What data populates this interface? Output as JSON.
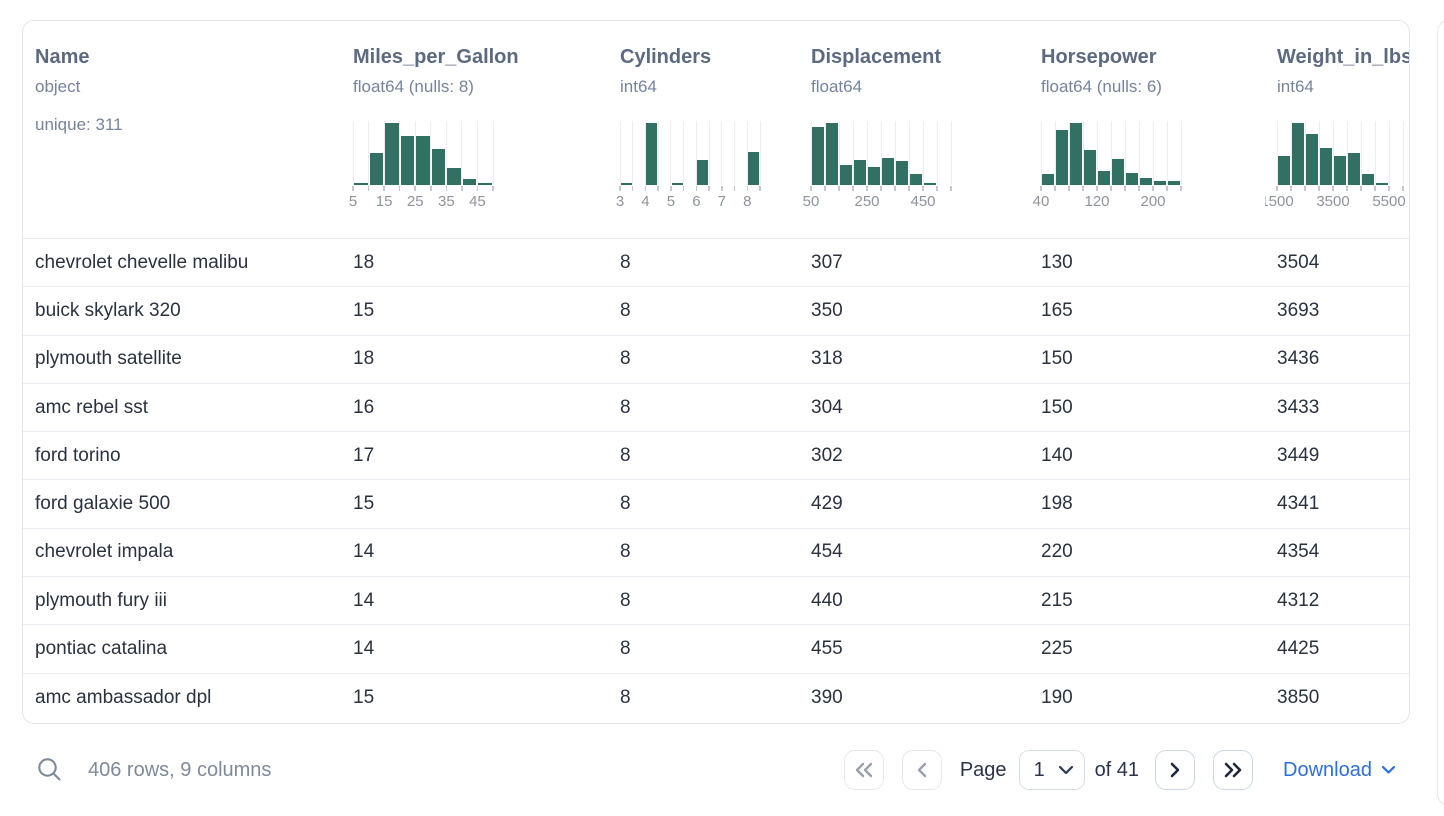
{
  "table": {
    "columns": [
      {
        "name": "Name",
        "dtype": "object",
        "unique": "unique: 311"
      },
      {
        "name": "Miles_per_Gallon",
        "dtype": "float64 (nulls: 8)"
      },
      {
        "name": "Cylinders",
        "dtype": "int64"
      },
      {
        "name": "Displacement",
        "dtype": "float64"
      },
      {
        "name": "Horsepower",
        "dtype": "float64 (nulls: 6)"
      },
      {
        "name": "Weight_in_lbs",
        "dtype": "int64"
      }
    ],
    "rows": [
      [
        "chevrolet chevelle malibu",
        "18",
        "8",
        "307",
        "130",
        "3504"
      ],
      [
        "buick skylark 320",
        "15",
        "8",
        "350",
        "165",
        "3693"
      ],
      [
        "plymouth satellite",
        "18",
        "8",
        "318",
        "150",
        "3436"
      ],
      [
        "amc rebel sst",
        "16",
        "8",
        "304",
        "150",
        "3433"
      ],
      [
        "ford torino",
        "17",
        "8",
        "302",
        "140",
        "3449"
      ],
      [
        "ford galaxie 500",
        "15",
        "8",
        "429",
        "198",
        "4341"
      ],
      [
        "chevrolet impala",
        "14",
        "8",
        "454",
        "220",
        "4354"
      ],
      [
        "plymouth fury iii",
        "14",
        "8",
        "440",
        "215",
        "4312"
      ],
      [
        "pontiac catalina",
        "14",
        "8",
        "455",
        "225",
        "4425"
      ],
      [
        "amc ambassador dpl",
        "15",
        "8",
        "390",
        "190",
        "3850"
      ]
    ]
  },
  "chart_data": [
    {
      "type": "bar",
      "column": "Miles_per_Gallon",
      "bin_edges": [
        5,
        10,
        15,
        20,
        25,
        30,
        35,
        40,
        45,
        50
      ],
      "rel_heights": [
        0.02,
        0.52,
        1.0,
        0.79,
        0.79,
        0.58,
        0.28,
        0.09,
        0.02
      ],
      "tick_labels": [
        "5",
        "15",
        "25",
        "35",
        "45"
      ],
      "label_edge_idx": [
        0,
        2,
        4,
        6,
        8
      ],
      "ylabel": "relative frequency (unlabeled)"
    },
    {
      "type": "bar",
      "column": "Cylinders",
      "bin_edges": [
        3,
        3.5,
        4,
        4.5,
        5,
        5.5,
        6,
        6.5,
        7,
        7.5,
        8,
        8.5
      ],
      "rel_heights": [
        0.03,
        0,
        1.0,
        0,
        0.02,
        0,
        0.41,
        0,
        0,
        0,
        0.53
      ],
      "tick_labels": [
        "3",
        "4",
        "5",
        "6",
        "7",
        "8"
      ],
      "label_edge_idx": [
        0,
        2,
        4,
        6,
        8,
        10
      ],
      "ylabel": "relative frequency (unlabeled)"
    },
    {
      "type": "bar",
      "column": "Displacement",
      "bin_edges": [
        50,
        100,
        150,
        200,
        250,
        300,
        350,
        400,
        450,
        500,
        550
      ],
      "rel_heights": [
        0.93,
        1.0,
        0.33,
        0.41,
        0.29,
        0.43,
        0.38,
        0.17,
        0.04,
        0
      ],
      "tick_labels": [
        "50",
        "250",
        "450"
      ],
      "label_edge_idx": [
        0,
        4,
        8
      ],
      "ylabel": "relative frequency (unlabeled)"
    },
    {
      "type": "bar",
      "column": "Horsepower",
      "bin_edges": [
        40,
        60,
        80,
        100,
        120,
        140,
        160,
        180,
        200,
        220,
        240
      ],
      "rel_heights": [
        0.17,
        0.88,
        1.0,
        0.56,
        0.23,
        0.42,
        0.2,
        0.11,
        0.07,
        0.07
      ],
      "tick_labels": [
        "40",
        "120",
        "200"
      ],
      "label_edge_idx": [
        0,
        4,
        8
      ],
      "ylabel": "relative frequency (unlabeled)"
    },
    {
      "type": "bar",
      "column": "Weight_in_lbs",
      "bin_edges": [
        1500,
        2000,
        2500,
        3000,
        3500,
        4000,
        4500,
        5000,
        5500,
        6000,
        6500
      ],
      "rel_heights": [
        0.46,
        1.0,
        0.82,
        0.6,
        0.47,
        0.51,
        0.17,
        0.03,
        0,
        0
      ],
      "tick_labels": [
        "1500",
        "3500",
        "5500"
      ],
      "label_edge_idx": [
        0,
        4,
        8
      ],
      "ylabel": "relative frequency (unlabeled)"
    }
  ],
  "footer": {
    "summary": "406 rows, 9 columns",
    "page_label": "Page",
    "page_value": "1",
    "of_label": "of 41",
    "download_label": "Download"
  },
  "colors": {
    "histogram_green": "#337064",
    "link_blue": "#2e6edb",
    "header_slate": "#5c6a80",
    "row_text": "#29323f"
  }
}
